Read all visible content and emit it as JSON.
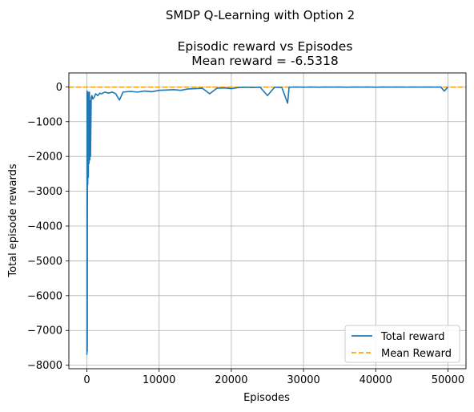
{
  "figure": {
    "suptitle": "SMDP Q-Learning with Option 2"
  },
  "chart_data": {
    "type": "line",
    "title_line1": "Episodic reward vs Episodes",
    "title_line2": "Mean reward = -6.5318",
    "xlabel": "Episodes",
    "ylabel": "Total episode rewards",
    "xlim": [
      -2500,
      52500
    ],
    "ylim": [
      -8100,
      400
    ],
    "xticks": [
      0,
      10000,
      20000,
      30000,
      40000,
      50000
    ],
    "xtick_labels": [
      "0",
      "10000",
      "20000",
      "30000",
      "40000",
      "50000"
    ],
    "yticks": [
      0,
      -1000,
      -2000,
      -3000,
      -4000,
      -5000,
      -6000,
      -7000,
      -8000
    ],
    "ytick_labels": [
      "0",
      "−1000",
      "−2000",
      "−3000",
      "−4000",
      "−5000",
      "−6000",
      "−7000",
      "−8000"
    ],
    "grid": true,
    "legend_position": "lower-right",
    "series": [
      {
        "name": "Total reward",
        "color": "#1f77b4",
        "style": "solid",
        "points": [
          [
            0,
            -7700
          ],
          [
            20,
            -120
          ],
          [
            50,
            -7600
          ],
          [
            80,
            -300
          ],
          [
            120,
            -2800
          ],
          [
            160,
            -150
          ],
          [
            200,
            -2600
          ],
          [
            260,
            -200
          ],
          [
            300,
            -2200
          ],
          [
            350,
            -150
          ],
          [
            400,
            -2100
          ],
          [
            450,
            -400
          ],
          [
            500,
            -2000
          ],
          [
            600,
            -300
          ],
          [
            700,
            -250
          ],
          [
            800,
            -350
          ],
          [
            1000,
            -300
          ],
          [
            1200,
            -200
          ],
          [
            1500,
            -250
          ],
          [
            1800,
            -180
          ],
          [
            2000,
            -200
          ],
          [
            2500,
            -150
          ],
          [
            3000,
            -180
          ],
          [
            3500,
            -150
          ],
          [
            4000,
            -200
          ],
          [
            4500,
            -380
          ],
          [
            5000,
            -150
          ],
          [
            6000,
            -130
          ],
          [
            7000,
            -150
          ],
          [
            8000,
            -120
          ],
          [
            9000,
            -140
          ],
          [
            10000,
            -100
          ],
          [
            11000,
            -90
          ],
          [
            12000,
            -80
          ],
          [
            13000,
            -100
          ],
          [
            14000,
            -60
          ],
          [
            15000,
            -50
          ],
          [
            16000,
            -40
          ],
          [
            17000,
            -200
          ],
          [
            18000,
            -40
          ],
          [
            19000,
            -30
          ],
          [
            20000,
            -50
          ],
          [
            21000,
            -20
          ],
          [
            22000,
            -10
          ],
          [
            23000,
            -20
          ],
          [
            24000,
            -10
          ],
          [
            25000,
            -250
          ],
          [
            26000,
            -10
          ],
          [
            27000,
            -20
          ],
          [
            27800,
            -470
          ],
          [
            28000,
            -10
          ],
          [
            29000,
            -5
          ],
          [
            30000,
            -10
          ],
          [
            31000,
            -5
          ],
          [
            32000,
            -10
          ],
          [
            33000,
            -5
          ],
          [
            34000,
            -8
          ],
          [
            35000,
            -5
          ],
          [
            36000,
            -10
          ],
          [
            37000,
            -5
          ],
          [
            38000,
            -8
          ],
          [
            39000,
            -5
          ],
          [
            40000,
            -10
          ],
          [
            41000,
            -5
          ],
          [
            42000,
            -8
          ],
          [
            43000,
            -5
          ],
          [
            44000,
            -8
          ],
          [
            45000,
            -5
          ],
          [
            46000,
            -8
          ],
          [
            47000,
            -5
          ],
          [
            48000,
            -8
          ],
          [
            49000,
            -5
          ],
          [
            49500,
            -120
          ],
          [
            50000,
            -5
          ]
        ]
      },
      {
        "name": "Mean Reward",
        "color": "#ffa500",
        "style": "dashed",
        "y": -6.5318
      }
    ]
  }
}
